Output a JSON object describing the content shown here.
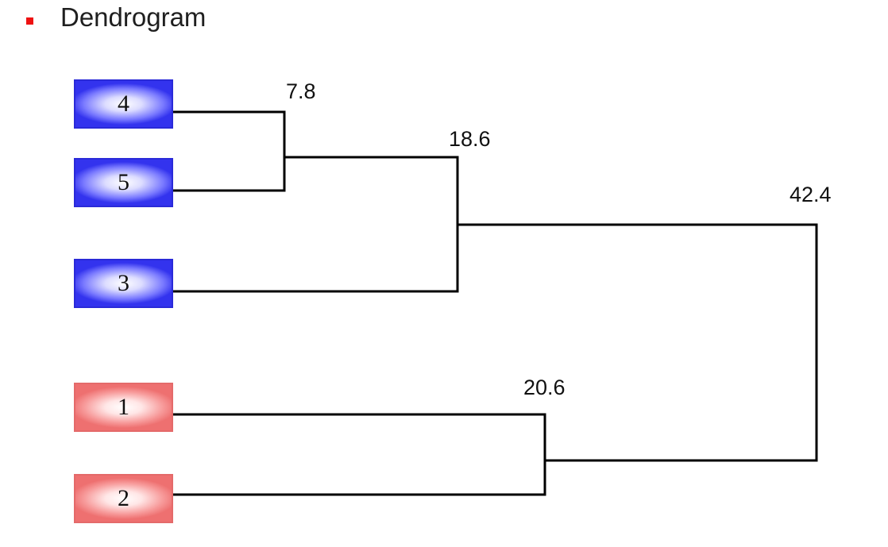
{
  "slide": {
    "bullet_color": "#ee1111",
    "title": "Dendrogram"
  },
  "dendrogram": {
    "leaves": [
      {
        "label": "4",
        "group": "blue"
      },
      {
        "label": "5",
        "group": "blue"
      },
      {
        "label": "3",
        "group": "blue"
      },
      {
        "label": "1",
        "group": "red"
      },
      {
        "label": "2",
        "group": "red"
      }
    ],
    "merges": [
      {
        "members": [
          "4",
          "5"
        ],
        "height": "7.8"
      },
      {
        "members": [
          "4-5",
          "3"
        ],
        "height": "18.6"
      },
      {
        "members": [
          "1",
          "2"
        ],
        "height": "20.6"
      },
      {
        "members": [
          "3-4-5",
          "1-2"
        ],
        "height": "42.4"
      }
    ],
    "colors": {
      "blue_group": "#3333ee",
      "red_group": "#ee7070",
      "link": "#000000"
    }
  }
}
